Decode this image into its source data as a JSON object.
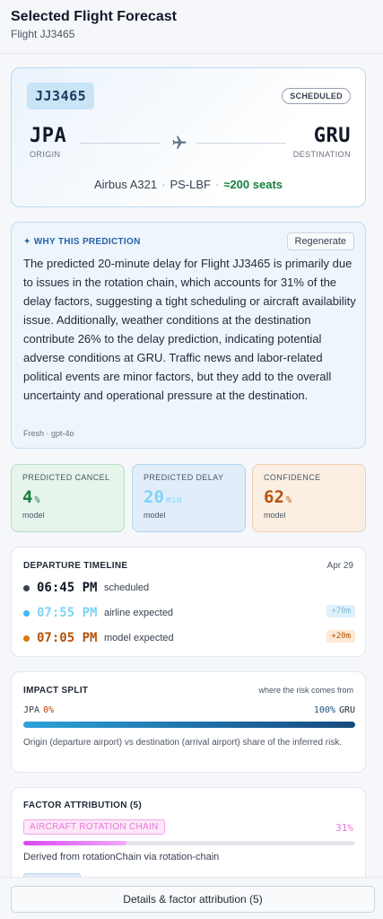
{
  "header": {
    "title": "Selected Flight Forecast",
    "subtitle": "Flight JJ3465"
  },
  "flight": {
    "code": "JJ3465",
    "status": "SCHEDULED",
    "origin": {
      "code": "JPA",
      "role": "ORIGIN"
    },
    "destination": {
      "code": "GRU",
      "role": "DESTINATION"
    },
    "aircraft": "Airbus A321",
    "separator": "·",
    "registration": "PS-LBF",
    "seats": "≈200 seats",
    "icons": {
      "route": "airplane-icon"
    }
  },
  "why": {
    "label": "✦ WHY THIS PREDICTION",
    "regenerate_label": "Regenerate",
    "text": "The predicted 20-minute delay for Flight JJ3465 is primarily due to issues in the rotation chain, which accounts for 31% of the delay factors, suggesting a tight scheduling or aircraft availability issue. Additionally, weather conditions at the destination contribute 26% to the delay prediction, indicating potential adverse conditions at GRU. Traffic news and labor-related political events are minor factors, but they add to the overall uncertainty and operational pressure at the destination.",
    "footer": "Fresh · gpt-4o"
  },
  "metrics": {
    "cancel": {
      "label": "PREDICTED CANCEL",
      "value": "4",
      "unit": "%",
      "sub": "model"
    },
    "delay": {
      "label": "PREDICTED DELAY",
      "value": "20",
      "unit": "min",
      "sub": "model"
    },
    "confidence": {
      "label": "CONFIDENCE",
      "value": "62",
      "unit": "%",
      "sub": "model"
    }
  },
  "timeline": {
    "title": "DEPARTURE TIMELINE",
    "date": "Apr 29",
    "rows": [
      {
        "time": "06:45 PM",
        "label": "scheduled",
        "delta": "",
        "color": "#374151"
      },
      {
        "time": "07:55 PM",
        "label": "airline expected",
        "delta": "+70m",
        "color": "#38bdf8"
      },
      {
        "time": "07:05 PM",
        "label": "model expected",
        "delta": "+20m",
        "color": "#d97706"
      }
    ]
  },
  "impact": {
    "title": "IMPACT SPLIT",
    "note": "where the risk comes from",
    "origin_code": "JPA",
    "origin_pct": "0%",
    "dest_code": "GRU",
    "dest_pct": "100%",
    "description": "Origin (departure airport) vs destination (arrival airport) share of the inferred risk."
  },
  "factors": {
    "title": "FACTOR ATTRIBUTION (5)",
    "top": {
      "tag": "AIRCRAFT ROTATION CHAIN",
      "pct": "31%",
      "fraction": 0.31,
      "desc": "Derived from rotationChain via rotation-chain"
    }
  },
  "footer": {
    "details_label": "Details & factor attribution (5)"
  },
  "colors": {
    "accent": "#2563a8",
    "cancel": "#15803d",
    "delay": "#7fd3f7",
    "confidence": "#b45309",
    "factor": "#e879d8"
  }
}
